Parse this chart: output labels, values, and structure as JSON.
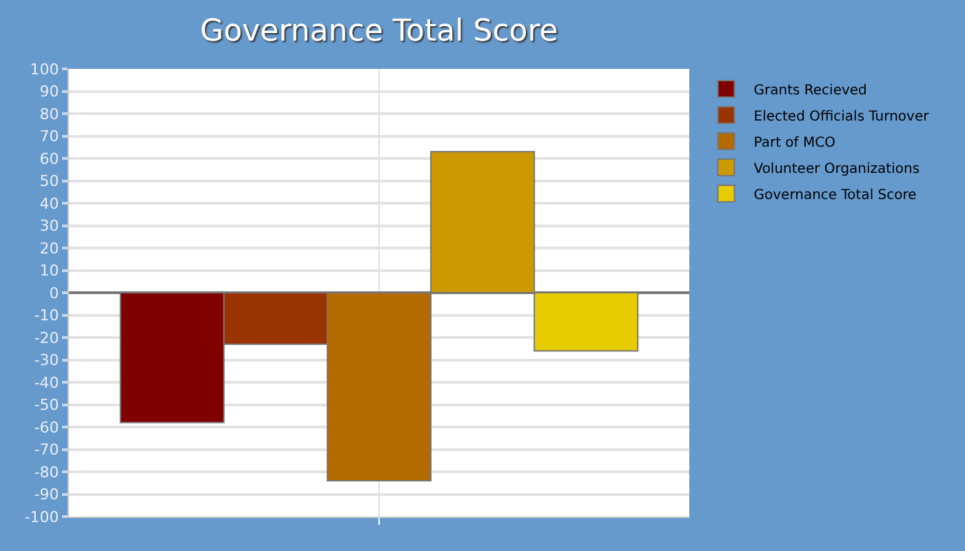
{
  "chart_data": {
    "type": "bar",
    "title": "Governance Total Score",
    "categories": [
      null
    ],
    "series": [
      {
        "name": "Grants Recieved",
        "color": "#800000",
        "values": [
          -58
        ]
      },
      {
        "name": "Elected Officials Turnover",
        "color": "#993300",
        "values": [
          -23
        ]
      },
      {
        "name": "Part of MCO",
        "color": "#b36b00",
        "values": [
          -84
        ]
      },
      {
        "name": "Volunteer Organizations",
        "color": "#cc9900",
        "values": [
          63
        ]
      },
      {
        "name": "Governance Total Score",
        "color": "#e6cc00",
        "values": [
          -26
        ]
      }
    ],
    "ylim": [
      -100,
      100
    ],
    "yticks": [
      -100,
      -90,
      -80,
      -70,
      -60,
      -50,
      -40,
      -30,
      -20,
      -10,
      0,
      10,
      20,
      30,
      40,
      50,
      60,
      70,
      80,
      90,
      100
    ],
    "grid": true,
    "legend": "top right"
  }
}
